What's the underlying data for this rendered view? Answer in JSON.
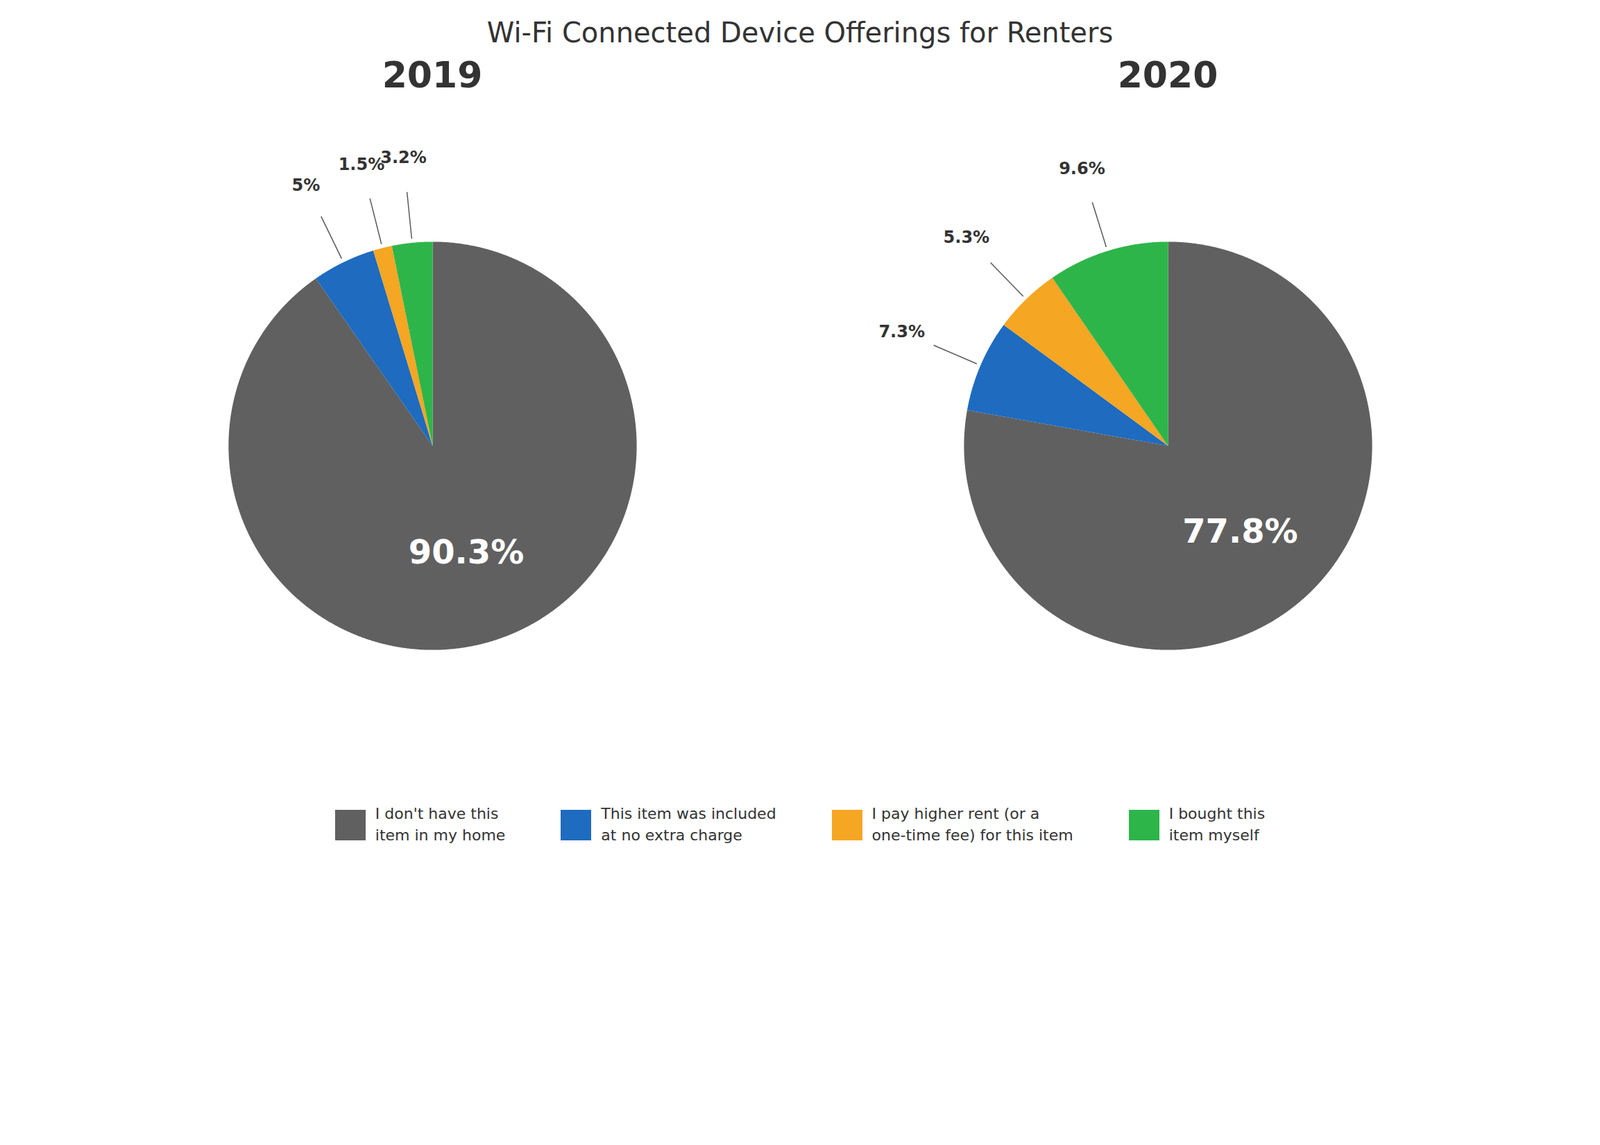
{
  "title": "Wi-Fi Connected Device Offerings for Renters",
  "chart_data": [
    {
      "type": "pie",
      "title": "2019",
      "categories": [
        "I don't have this\nitem in my home",
        "This item was included\nat no extra charge",
        "I pay higher rent (or a\none-time fee) for this item",
        "I bought this\nitem myself"
      ],
      "values": [
        90.3,
        5.0,
        1.5,
        3.2
      ],
      "value_labels": [
        "90.3%",
        "5%",
        "1.5%",
        "3.2%"
      ],
      "colors": [
        "#606060",
        "#1e6bbf",
        "#f5a623",
        "#2db54a"
      ],
      "data_labels": true,
      "legend": "bottom"
    },
    {
      "type": "pie",
      "title": "2020",
      "categories": [
        "I don't have this\nitem in my home",
        "This item was included\nat no extra charge",
        "I pay higher rent (or a\none-time fee) for this item",
        "I bought this\nitem myself"
      ],
      "values": [
        77.8,
        7.3,
        5.3,
        9.6
      ],
      "value_labels": [
        "77.8%",
        "7.3%",
        "5.3%",
        "9.6%"
      ],
      "colors": [
        "#606060",
        "#1e6bbf",
        "#f5a623",
        "#2db54a"
      ],
      "data_labels": true
    }
  ]
}
